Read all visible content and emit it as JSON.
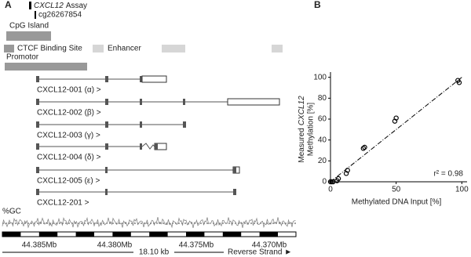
{
  "panel_a": {
    "label": "A",
    "assay_gene": "CXCL12",
    "assay_suffix": "Assay",
    "probe": "cg26267854",
    "cpg": "CpG Island",
    "ctcf": "CTCF Binding Site",
    "enhancer": "Enhancer",
    "promotor": "Promotor",
    "transcripts": [
      "CXCL12-001 (α) >",
      "CXCL12-002 (β) >",
      "CXCL12-003 (γ) >",
      "CXCL12-004 (δ) >",
      "CXCL12-005 (ε) >",
      "CXCL12-201 >"
    ],
    "gc": "%GC",
    "positions": [
      "44.385Mb",
      "44.380Mb",
      "44.375Mb",
      "44.370Mb"
    ],
    "span": "18.10 kb",
    "strand": "Reverse Strand ►"
  },
  "chart_data": {
    "type": "scatter",
    "panel_label": "B",
    "xlabel": "Methylated DNA Input [%]",
    "ylabel_prefix": "Measured",
    "ylabel_gene": "CXCL12",
    "ylabel_line2": "Methylation [%]",
    "annotation": "r² = 0.98",
    "x": [
      0,
      1,
      2,
      5,
      6,
      12,
      13,
      25,
      26,
      49,
      50,
      97,
      98
    ],
    "values": [
      0,
      0,
      0,
      1,
      3,
      8,
      11,
      32,
      33,
      58,
      61,
      97,
      95
    ],
    "trendline": {
      "x": [
        0,
        100
      ],
      "y": [
        0,
        100
      ]
    },
    "xlim": [
      0,
      104
    ],
    "ylim": [
      0,
      105
    ],
    "xticks": [
      0,
      50,
      100
    ],
    "yticks": [
      0,
      20,
      40,
      60,
      80,
      100
    ]
  }
}
